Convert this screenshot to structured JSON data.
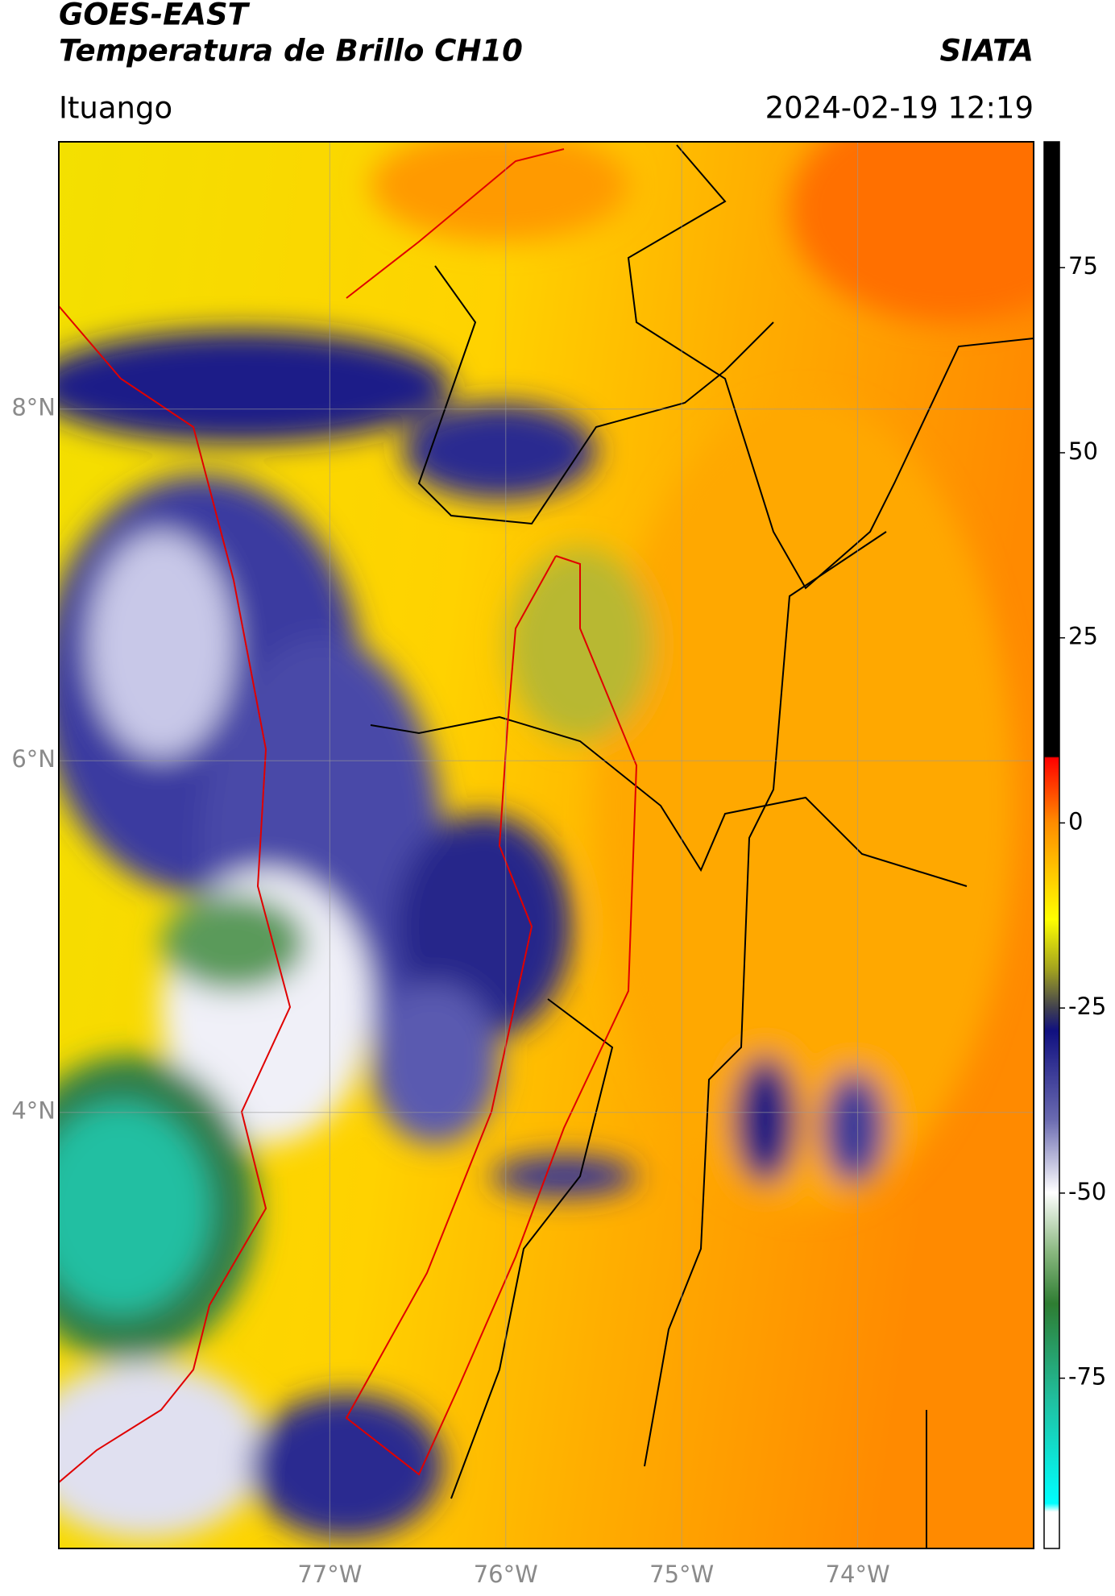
{
  "header": {
    "title": "GOES-EAST",
    "subtitle": "Temperatura de Brillo CH10",
    "source": "SIATA",
    "location": "Ituango",
    "datetime": "2024-02-19 12:19"
  },
  "map": {
    "xlim": [
      -78.54,
      -73.0
    ],
    "ylim": [
      1.52,
      9.52
    ],
    "xticks": [
      {
        "value": -77,
        "label": "77°W"
      },
      {
        "value": -76,
        "label": "76°W"
      },
      {
        "value": -75,
        "label": "75°W"
      },
      {
        "value": -74,
        "label": "74°W"
      }
    ],
    "yticks": [
      {
        "value": 8,
        "label": "8°N"
      },
      {
        "value": 6,
        "label": "6°N"
      },
      {
        "value": 4,
        "label": "4°N"
      }
    ],
    "grid": true
  },
  "colorbar": {
    "lim": [
      -98,
      92
    ],
    "ticks": [
      75,
      50,
      25,
      0,
      -25,
      -50,
      -75
    ]
  }
}
